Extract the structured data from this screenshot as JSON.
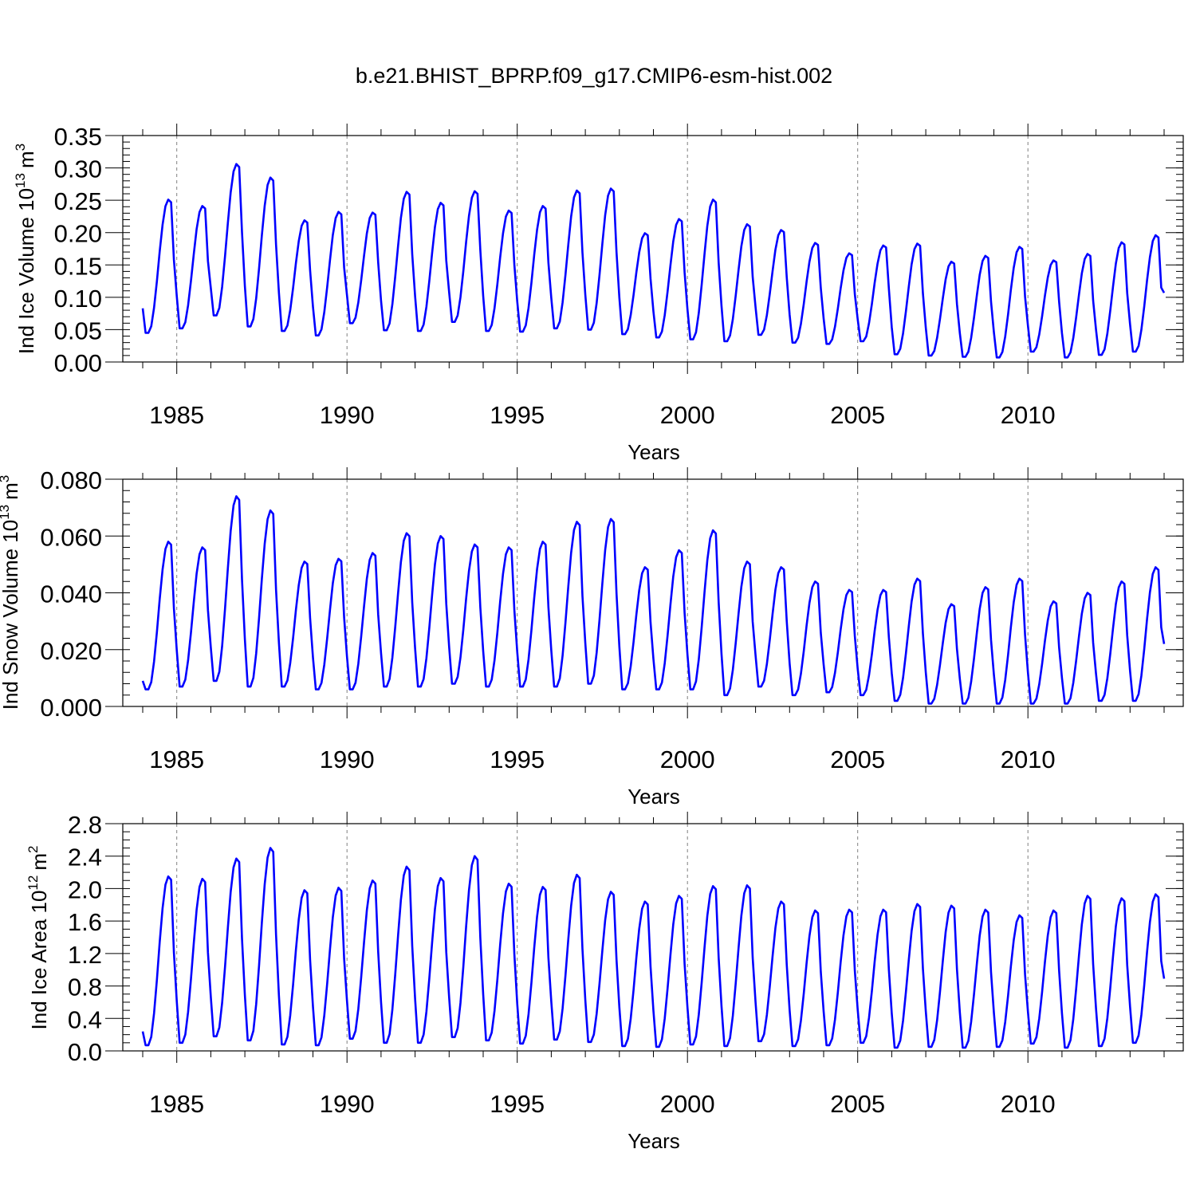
{
  "title": "b.e21.BHIST_BPRP.f09_g17.CMIP6-esm-hist.002",
  "colors": {
    "line": "#0000ff",
    "axis": "#000000",
    "grid": "#808080"
  },
  "chart_data": [
    {
      "type": "line",
      "name": "ice-volume",
      "ylabel": "Ind Ice Volume 10",
      "ylabel_exp": "13",
      "ylabel_unit": "m",
      "ylabel_unit_exp": "3",
      "xlabel": "Years",
      "xlim": [
        1984,
        2014
      ],
      "ylim": [
        0,
        0.35
      ],
      "yticks": [
        0,
        0.05,
        0.1,
        0.15,
        0.2,
        0.25,
        0.3,
        0.35
      ],
      "yticklabels": [
        "0.00",
        "0.05",
        "0.10",
        "0.15",
        "0.20",
        "0.25",
        "0.30",
        "0.35"
      ],
      "yminor": 0.01,
      "xticks": [
        1985,
        1990,
        1995,
        2000,
        2005,
        2010
      ],
      "xticklabels": [
        "1985",
        "1990",
        "1995",
        "2000",
        "2005",
        "2010"
      ],
      "grid_x": [
        1985,
        1990,
        1995,
        2000,
        2005,
        2010
      ],
      "series": [
        {
          "name": "Ind Ice Volume",
          "minima": [
            0.045,
            0.052,
            0.072,
            0.055,
            0.048,
            0.041,
            0.06,
            0.049,
            0.048,
            0.062,
            0.048,
            0.047,
            0.052,
            0.05,
            0.043,
            0.038,
            0.035,
            0.032,
            0.042,
            0.03,
            0.028,
            0.032,
            0.012,
            0.01,
            0.008,
            0.007,
            0.016,
            0.007,
            0.011,
            0.016
          ],
          "maxima": [
            0.251,
            0.241,
            0.306,
            0.285,
            0.219,
            0.232,
            0.231,
            0.263,
            0.246,
            0.264,
            0.234,
            0.241,
            0.265,
            0.268,
            0.199,
            0.221,
            0.251,
            0.213,
            0.204,
            0.184,
            0.168,
            0.18,
            0.183,
            0.155,
            0.164,
            0.178,
            0.157,
            0.167,
            0.185,
            0.196
          ],
          "start": 0.083,
          "end": 0.107
        }
      ]
    },
    {
      "type": "line",
      "name": "snow-volume",
      "ylabel": "Ind Snow Volume 10",
      "ylabel_exp": "13",
      "ylabel_unit": "m",
      "ylabel_unit_exp": "3",
      "xlabel": "Years",
      "xlim": [
        1984,
        2014
      ],
      "ylim": [
        0,
        0.08
      ],
      "yticks": [
        0,
        0.02,
        0.04,
        0.06,
        0.08
      ],
      "yticklabels": [
        "0.000",
        "0.020",
        "0.040",
        "0.060",
        "0.080"
      ],
      "yminor": 0.004,
      "xticks": [
        1985,
        1990,
        1995,
        2000,
        2005,
        2010
      ],
      "xticklabels": [
        "1985",
        "1990",
        "1995",
        "2000",
        "2005",
        "2010"
      ],
      "grid_x": [
        1985,
        1990,
        1995,
        2000,
        2005,
        2010
      ],
      "series": [
        {
          "name": "Ind Snow Volume",
          "minima": [
            0.006,
            0.007,
            0.009,
            0.007,
            0.007,
            0.006,
            0.006,
            0.007,
            0.007,
            0.008,
            0.007,
            0.007,
            0.007,
            0.008,
            0.006,
            0.006,
            0.006,
            0.004,
            0.007,
            0.004,
            0.005,
            0.004,
            0.002,
            0.001,
            0.001,
            0.001,
            0.001,
            0.001,
            0.002,
            0.002
          ],
          "maxima": [
            0.058,
            0.056,
            0.074,
            0.069,
            0.051,
            0.052,
            0.054,
            0.061,
            0.06,
            0.057,
            0.056,
            0.058,
            0.065,
            0.066,
            0.049,
            0.055,
            0.062,
            0.051,
            0.049,
            0.044,
            0.041,
            0.041,
            0.045,
            0.036,
            0.042,
            0.045,
            0.037,
            0.04,
            0.044,
            0.049
          ],
          "start": 0.009,
          "end": 0.022
        }
      ]
    },
    {
      "type": "line",
      "name": "ice-area",
      "ylabel": "Ind Ice Area 10",
      "ylabel_exp": "12",
      "ylabel_unit": "m",
      "ylabel_unit_exp": "2",
      "xlabel": "Years",
      "xlim": [
        1984,
        2014
      ],
      "ylim": [
        0,
        2.8
      ],
      "yticks": [
        0,
        0.4,
        0.8,
        1.2,
        1.6,
        2.0,
        2.4,
        2.8
      ],
      "yticklabels": [
        "0.0",
        "0.4",
        "0.8",
        "1.2",
        "1.6",
        "2.0",
        "2.4",
        "2.8"
      ],
      "yminor": 0.1,
      "xticks": [
        1985,
        1990,
        1995,
        2000,
        2005,
        2010
      ],
      "xticklabels": [
        "1985",
        "1990",
        "1995",
        "2000",
        "2005",
        "2010"
      ],
      "grid_x": [
        1985,
        1990,
        1995,
        2000,
        2005,
        2010
      ],
      "series": [
        {
          "name": "Ind Ice Area",
          "minima": [
            0.07,
            0.1,
            0.18,
            0.13,
            0.08,
            0.07,
            0.15,
            0.1,
            0.1,
            0.17,
            0.13,
            0.09,
            0.14,
            0.11,
            0.06,
            0.05,
            0.08,
            0.06,
            0.12,
            0.06,
            0.07,
            0.1,
            0.04,
            0.05,
            0.04,
            0.05,
            0.09,
            0.04,
            0.06,
            0.1
          ],
          "maxima": [
            2.15,
            2.12,
            2.37,
            2.5,
            1.98,
            2.01,
            2.1,
            2.27,
            2.13,
            2.4,
            2.06,
            2.02,
            2.17,
            1.96,
            1.84,
            1.91,
            2.03,
            2.04,
            1.84,
            1.73,
            1.74,
            1.74,
            1.81,
            1.79,
            1.74,
            1.67,
            1.73,
            1.91,
            1.88,
            1.93
          ],
          "start": 0.24,
          "end": 0.89
        }
      ]
    }
  ]
}
